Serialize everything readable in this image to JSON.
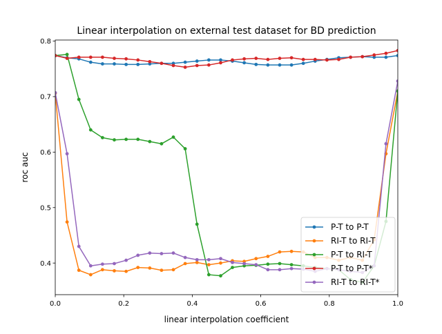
{
  "chart_data": {
    "type": "line",
    "title": "Linear interpolation on external test dataset for BD prediction",
    "xlabel": "linear interpolation coefficient",
    "ylabel": "roc auc",
    "xlim": [
      0.0,
      1.0
    ],
    "ylim": [
      0.343,
      0.802
    ],
    "xticks": [
      0.0,
      0.2,
      0.4,
      0.6,
      0.8,
      1.0
    ],
    "xtick_labels": [
      "0.0",
      "0.2",
      "0.4",
      "0.6",
      "0.8",
      "1.0"
    ],
    "yticks": [
      0.4,
      0.5,
      0.6,
      0.7,
      0.8
    ],
    "ytick_labels": [
      "0.4",
      "0.5",
      "0.6",
      "0.7",
      "0.8"
    ],
    "grid": false,
    "legend_position": "lower-right",
    "x": [
      0.0,
      0.0345,
      0.069,
      0.1034,
      0.1379,
      0.1724,
      0.2069,
      0.2414,
      0.2759,
      0.3103,
      0.3448,
      0.3793,
      0.4138,
      0.4483,
      0.4828,
      0.5172,
      0.5517,
      0.5862,
      0.6207,
      0.6552,
      0.6897,
      0.7241,
      0.7586,
      0.7931,
      0.8276,
      0.8621,
      0.8966,
      0.931,
      0.9655,
      1.0
    ],
    "series": [
      {
        "name": "P-T to P-T",
        "color": "#1f77b4",
        "values": [
          0.774,
          0.77,
          0.768,
          0.762,
          0.759,
          0.759,
          0.758,
          0.758,
          0.759,
          0.76,
          0.76,
          0.762,
          0.764,
          0.766,
          0.766,
          0.764,
          0.761,
          0.758,
          0.757,
          0.757,
          0.757,
          0.76,
          0.764,
          0.767,
          0.77,
          0.771,
          0.772,
          0.771,
          0.771,
          0.774
        ]
      },
      {
        "name": "RI-T to RI-T",
        "color": "#ff7f0e",
        "values": [
          0.706,
          0.474,
          0.387,
          0.379,
          0.388,
          0.386,
          0.385,
          0.392,
          0.391,
          0.387,
          0.388,
          0.399,
          0.401,
          0.397,
          0.4,
          0.404,
          0.403,
          0.408,
          0.412,
          0.42,
          0.421,
          0.42,
          0.41,
          0.41,
          0.405,
          0.41,
          0.405,
          0.442,
          0.597,
          0.71
        ]
      },
      {
        "name": "P-T to RI-T",
        "color": "#2ca02c",
        "values": [
          0.774,
          0.776,
          0.695,
          0.64,
          0.626,
          0.622,
          0.623,
          0.623,
          0.619,
          0.615,
          0.627,
          0.606,
          0.47,
          0.379,
          0.377,
          0.392,
          0.395,
          0.396,
          0.398,
          0.399,
          0.397,
          0.395,
          0.392,
          0.39,
          0.388,
          0.37,
          0.365,
          0.395,
          0.475,
          0.71
        ]
      },
      {
        "name": "P-T to P-T*",
        "color": "#d62728",
        "values": [
          0.774,
          0.769,
          0.771,
          0.771,
          0.771,
          0.769,
          0.768,
          0.766,
          0.763,
          0.76,
          0.756,
          0.753,
          0.756,
          0.757,
          0.761,
          0.766,
          0.768,
          0.769,
          0.767,
          0.769,
          0.77,
          0.767,
          0.767,
          0.766,
          0.767,
          0.771,
          0.772,
          0.775,
          0.778,
          0.783
        ]
      },
      {
        "name": "RI-T to RI-T*",
        "color": "#9467bd",
        "values": [
          0.707,
          0.597,
          0.43,
          0.395,
          0.398,
          0.399,
          0.405,
          0.414,
          0.418,
          0.417,
          0.418,
          0.41,
          0.406,
          0.406,
          0.408,
          0.401,
          0.399,
          0.397,
          0.388,
          0.388,
          0.39,
          0.389,
          0.385,
          0.39,
          0.388,
          0.385,
          0.383,
          0.395,
          0.615,
          0.728
        ]
      }
    ]
  }
}
